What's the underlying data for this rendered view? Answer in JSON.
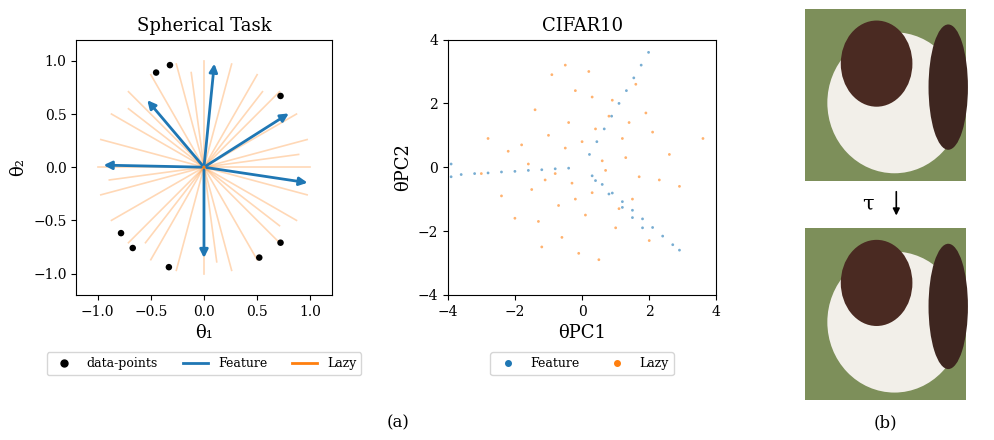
{
  "chart_data": [
    {
      "type": "vector",
      "title": "Spherical Task",
      "x_label": "θ₁",
      "y_label": "θ₂",
      "xlim": [
        -1.2,
        1.2
      ],
      "ylim": [
        -1.2,
        1.2
      ],
      "xticks": [
        {
          "value": -1.0,
          "label": "−1.0"
        },
        {
          "value": -0.5,
          "label": "−0.5"
        },
        0.0,
        0.5,
        1.0
      ],
      "yticks": [
        {
          "value": -1.0,
          "label": "−1.0"
        },
        {
          "value": -0.5,
          "label": "−0.5"
        },
        0.0,
        0.5,
        1.0
      ],
      "legend": "lower center",
      "series": [
        {
          "name": "data-points",
          "type": "scatter",
          "color": "#000000",
          "marker": "circle",
          "x": [
            -0.45,
            -0.32,
            0.72,
            -0.78,
            -0.67,
            -0.33,
            0.52,
            0.72
          ],
          "y": [
            0.89,
            0.96,
            0.67,
            -0.62,
            -0.76,
            -0.94,
            -0.85,
            -0.71
          ]
        },
        {
          "name": "Feature",
          "type": "arrow",
          "color": "#1f77b4",
          "x": [
            0.1,
            -0.97,
            1.0,
            0.0,
            0.82,
            -0.55
          ],
          "y": [
            1.0,
            0.02,
            -0.15,
            -0.88,
            0.52,
            0.65
          ]
        },
        {
          "name": "Lazy",
          "type": "ray",
          "color": "#ff7f0e",
          "x": [
            1.0,
            0.97,
            0.87,
            0.71,
            0.5,
            0.26,
            0.0,
            -0.26,
            -0.5,
            -0.71,
            -0.87,
            -0.97,
            -1.0,
            -0.97,
            -0.87,
            -0.71,
            -0.5,
            -0.26,
            0.0,
            0.26,
            0.5,
            0.71,
            0.87,
            0.97,
            0.89,
            0.55,
            -0.12,
            -0.71,
            -0.89,
            -0.55,
            0.12,
            0.71
          ],
          "y": [
            0.0,
            0.26,
            0.5,
            0.71,
            0.87,
            0.97,
            1.0,
            0.97,
            0.87,
            0.71,
            0.5,
            0.26,
            0.0,
            -0.26,
            -0.5,
            -0.71,
            -0.87,
            -0.97,
            -1.0,
            -0.97,
            -0.87,
            -0.71,
            -0.5,
            -0.26,
            0.12,
            0.71,
            0.89,
            0.55,
            -0.12,
            -0.71,
            -0.89,
            -0.55
          ]
        }
      ]
    },
    {
      "type": "scatter",
      "title": "CIFAR10",
      "x_label": "θPC1",
      "y_label": "θPC2",
      "xlim": [
        -4,
        4
      ],
      "ylim": [
        -4,
        4
      ],
      "xticks": [
        {
          "value": -4,
          "label": "−4"
        },
        {
          "value": -2,
          "label": "−2"
        },
        0,
        2,
        4
      ],
      "yticks": [
        {
          "value": -4,
          "label": "−4"
        },
        {
          "value": -2,
          "label": "−2"
        },
        0,
        2,
        4
      ],
      "legend": "lower center",
      "series": [
        {
          "name": "Feature",
          "type": "scatter",
          "color": "#1f77b4",
          "marker": "dot",
          "x": [
            0.22,
            0.44,
            0.66,
            0.88,
            1.1,
            1.32,
            1.54,
            1.76,
            1.98,
            -0.4,
            -0.8,
            -1.2,
            -1.6,
            -2.0,
            -2.4,
            -2.8,
            -3.2,
            -3.6,
            -3.9,
            -3.9,
            0.3,
            0.6,
            0.9,
            1.2,
            1.5,
            1.8,
            2.1,
            2.4,
            2.7,
            2.9,
            0.4,
            0.8,
            1.2,
            1.5,
            1.8
          ],
          "y": [
            0.4,
            0.8,
            1.2,
            1.6,
            2.0,
            2.4,
            2.8,
            3.2,
            3.6,
            -0.03,
            -0.05,
            -0.08,
            -0.1,
            -0.13,
            -0.15,
            -0.18,
            -0.2,
            -0.23,
            0.1,
            -0.3,
            -0.27,
            -0.54,
            -0.81,
            -1.08,
            -1.35,
            -1.62,
            -1.89,
            -2.16,
            -2.43,
            -2.6,
            -0.42,
            -0.84,
            -1.26,
            -1.58,
            -1.9
          ]
        },
        {
          "name": "Lazy",
          "type": "scatter",
          "color": "#ff7f0e",
          "marker": "dot",
          "x": [
            -0.5,
            0.3,
            1.2,
            -1.1,
            0.8,
            -0.2,
            1.7,
            -1.8,
            0.1,
            -0.7,
            2.1,
            -2.4,
            0.6,
            -1.4,
            1.0,
            -0.3,
            2.6,
            -0.9,
            0.4,
            -2.0,
            1.5,
            -0.1,
            0.9,
            -1.6,
            2.3,
            -0.6,
            1.3,
            -2.8,
            0.2,
            3.6,
            -1.2,
            0.7,
            -0.4,
            1.9,
            -1.0,
            0.5,
            -2.2,
            1.1,
            -0.8,
            2.9,
            0.0,
            -1.5,
            1.6,
            -0.2,
            0.3,
            -3.0,
            2.0,
            -0.5,
            1.4,
            -1.3
          ],
          "y": [
            0.6,
            -0.8,
            0.9,
            -0.4,
            1.6,
            2.4,
            -0.3,
            0.7,
            -1.5,
            -1.2,
            1.1,
            -0.9,
            0.2,
            1.8,
            -1.9,
            -0.5,
            0.4,
            2.9,
            1.2,
            -1.6,
            -1.0,
            -2.7,
            2.1,
            0.1,
            -0.4,
            -2.2,
            0.3,
            0.9,
            3.0,
            0.9,
            -2.5,
            -0.1,
            1.4,
            1.7,
            1.0,
            -2.9,
            0.5,
            -1.3,
            -0.2,
            -0.6,
            0.8,
            -0.7,
            2.6,
            -1.0,
            2.2,
            -0.2,
            -2.3,
            3.2,
            1.4,
            -1.7
          ]
        }
      ]
    }
  ],
  "figure": {
    "panel_labels": [
      "(a)",
      "(b)"
    ],
    "transform_label": "τ"
  }
}
